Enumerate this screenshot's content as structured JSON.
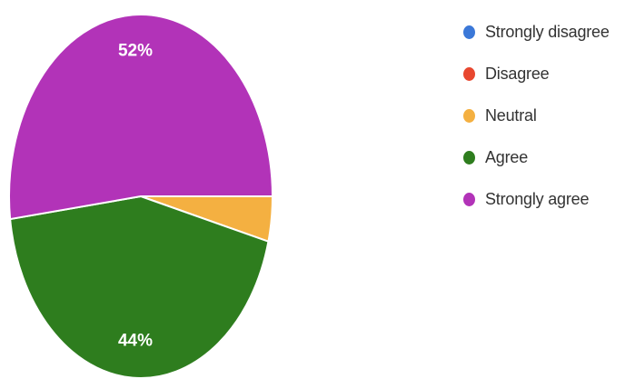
{
  "chart_data": {
    "type": "pie",
    "categories": [
      "Strongly disagree",
      "Disagree",
      "Neutral",
      "Agree",
      "Strongly agree"
    ],
    "values": [
      0,
      0,
      4,
      44,
      52
    ],
    "data_labels": [
      "",
      "",
      "",
      "44%",
      "52%"
    ],
    "colors": [
      "#3b78d8",
      "#e8472f",
      "#f4b041",
      "#2e7d1e",
      "#b233b8"
    ],
    "legend_position": "right"
  }
}
